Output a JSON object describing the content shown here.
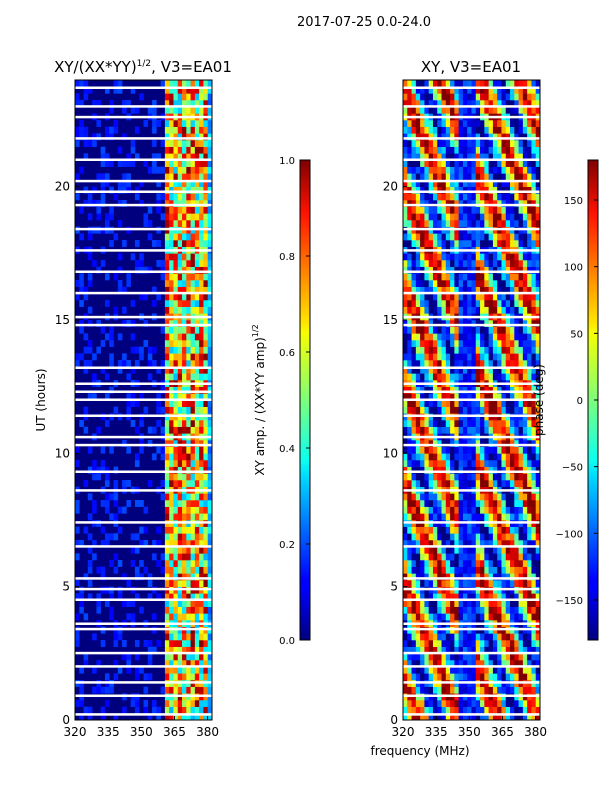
{
  "suptitle": "2017-07-25 0.0-24.0",
  "shared_xlabel": "frequency (MHz)",
  "colors": {
    "waterfall_background": "#00007f",
    "flag_gap": "#ffffff",
    "axes_frame": "#000000"
  },
  "chart_data": [
    {
      "id": "amplitude_ratio",
      "type": "heatmap",
      "title": "XY/(XX*YY)",
      "title_exponent": "1/2",
      "title_suffix": ", V3=EA01",
      "ylabel": "UT (hours)",
      "x_ticks": [
        320,
        335,
        350,
        365,
        380
      ],
      "y_ticks": [
        0,
        5,
        10,
        15,
        20
      ],
      "xlim": [
        320,
        382
      ],
      "ylim": [
        0,
        24
      ],
      "colorbar": {
        "label": "XY amp. / (XX*YY amp)",
        "label_exponent": "1/2",
        "ticks": [
          "0.0",
          "0.2",
          "0.4",
          "0.6",
          "0.8",
          "1.0"
        ],
        "range": [
          0,
          1
        ],
        "colormap": "jet"
      }
    },
    {
      "id": "phase",
      "type": "heatmap",
      "title": "XY, V3=EA01",
      "x_ticks": [
        320,
        335,
        350,
        365,
        380
      ],
      "y_ticks": [
        0,
        5,
        10,
        15,
        20
      ],
      "xlim": [
        320,
        382
      ],
      "ylim": [
        0,
        24
      ],
      "colorbar": {
        "label": "phase (deg)",
        "ticks": [
          "−150",
          "−100",
          "−50",
          "0",
          "50",
          "100",
          "150"
        ],
        "range": [
          -180,
          180
        ],
        "colormap": "jet"
      }
    }
  ]
}
